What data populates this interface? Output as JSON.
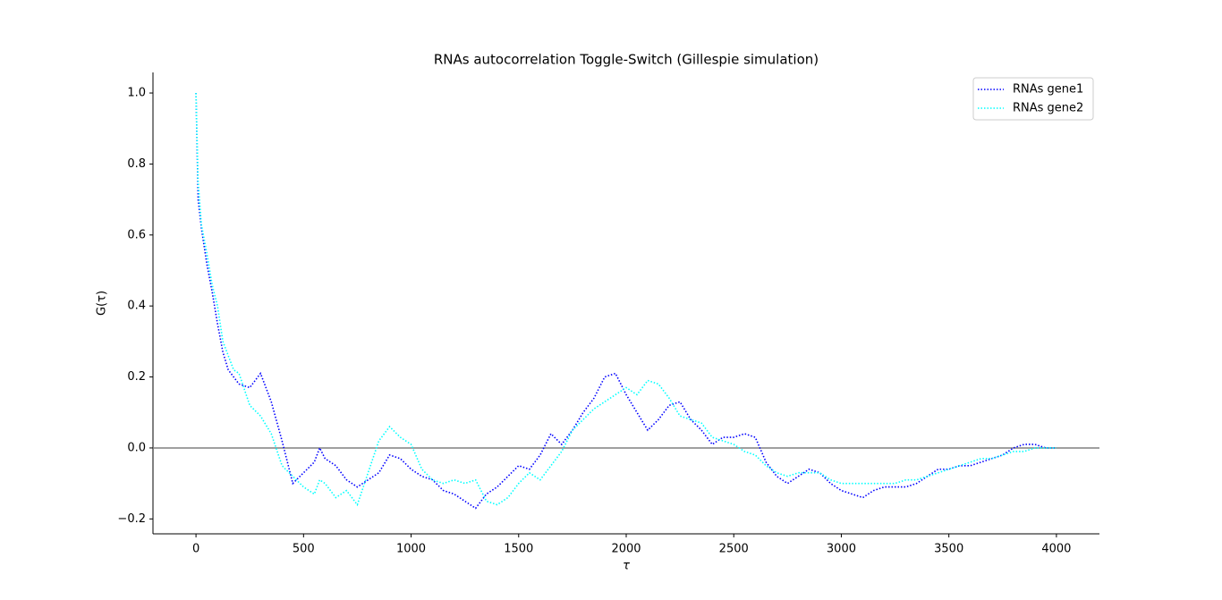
{
  "chart_data": {
    "type": "line",
    "title": "RNAs autocorrelation Toggle-Switch (Gillespie simulation)",
    "x_label": "τ",
    "y_label": "G(τ)",
    "x": [
      0,
      10,
      25,
      50,
      75,
      100,
      125,
      150,
      175,
      200,
      250,
      300,
      350,
      400,
      450,
      500,
      550,
      575,
      600,
      650,
      700,
      750,
      800,
      850,
      900,
      950,
      1000,
      1050,
      1100,
      1150,
      1200,
      1250,
      1300,
      1350,
      1400,
      1450,
      1500,
      1550,
      1600,
      1650,
      1700,
      1750,
      1800,
      1850,
      1900,
      1950,
      2000,
      2050,
      2100,
      2150,
      2200,
      2250,
      2300,
      2350,
      2400,
      2450,
      2500,
      2550,
      2600,
      2650,
      2700,
      2750,
      2800,
      2850,
      2900,
      2950,
      3000,
      3050,
      3100,
      3150,
      3200,
      3250,
      3300,
      3350,
      3400,
      3450,
      3500,
      3550,
      3600,
      3650,
      3700,
      3750,
      3800,
      3850,
      3900,
      3950,
      4000
    ],
    "series": [
      {
        "name": "RNAs gene1",
        "color": "#0000ff",
        "values": [
          1.0,
          0.7,
          0.62,
          0.52,
          0.44,
          0.35,
          0.27,
          0.22,
          0.2,
          0.18,
          0.17,
          0.21,
          0.13,
          0.02,
          -0.1,
          -0.07,
          -0.04,
          0.0,
          -0.03,
          -0.05,
          -0.09,
          -0.11,
          -0.09,
          -0.07,
          -0.02,
          -0.03,
          -0.06,
          -0.08,
          -0.09,
          -0.12,
          -0.13,
          -0.15,
          -0.17,
          -0.13,
          -0.11,
          -0.08,
          -0.05,
          -0.06,
          -0.02,
          0.04,
          0.01,
          0.05,
          0.1,
          0.14,
          0.2,
          0.21,
          0.15,
          0.1,
          0.05,
          0.08,
          0.12,
          0.13,
          0.08,
          0.05,
          0.01,
          0.03,
          0.03,
          0.04,
          0.03,
          -0.04,
          -0.08,
          -0.1,
          -0.08,
          -0.06,
          -0.07,
          -0.1,
          -0.12,
          -0.13,
          -0.14,
          -0.12,
          -0.11,
          -0.11,
          -0.11,
          -0.1,
          -0.08,
          -0.06,
          -0.06,
          -0.05,
          -0.05,
          -0.04,
          -0.03,
          -0.02,
          0.0,
          0.01,
          0.01,
          0.0,
          0.0
        ]
      },
      {
        "name": "RNAs gene2",
        "color": "#00ffff",
        "values": [
          1.0,
          0.75,
          0.63,
          0.55,
          0.46,
          0.4,
          0.3,
          0.26,
          0.22,
          0.21,
          0.12,
          0.09,
          0.04,
          -0.05,
          -0.08,
          -0.11,
          -0.13,
          -0.09,
          -0.1,
          -0.14,
          -0.12,
          -0.16,
          -0.07,
          0.02,
          0.06,
          0.03,
          0.01,
          -0.06,
          -0.09,
          -0.1,
          -0.09,
          -0.1,
          -0.09,
          -0.15,
          -0.16,
          -0.14,
          -0.1,
          -0.07,
          -0.09,
          -0.05,
          -0.01,
          0.05,
          0.08,
          0.11,
          0.13,
          0.15,
          0.17,
          0.15,
          0.19,
          0.18,
          0.14,
          0.09,
          0.08,
          0.07,
          0.03,
          0.02,
          0.01,
          -0.01,
          -0.02,
          -0.05,
          -0.07,
          -0.08,
          -0.07,
          -0.07,
          -0.07,
          -0.09,
          -0.1,
          -0.1,
          -0.1,
          -0.1,
          -0.1,
          -0.1,
          -0.09,
          -0.09,
          -0.08,
          -0.07,
          -0.06,
          -0.05,
          -0.04,
          -0.03,
          -0.03,
          -0.02,
          -0.01,
          -0.01,
          0.0,
          0.0,
          0.0
        ]
      }
    ],
    "xlim": [
      -200,
      4200
    ],
    "xticks": [
      0,
      500,
      1000,
      1500,
      2000,
      2500,
      3000,
      3500,
      4000
    ],
    "ylim": [
      -0.242,
      1.058
    ],
    "yticks": [
      {
        "value": -0.2,
        "label": "−0.2"
      },
      {
        "value": 0,
        "label": "0.0"
      },
      {
        "value": 0.2,
        "label": "0.2"
      },
      {
        "value": 0.4,
        "label": "0.4"
      },
      {
        "value": 0.6,
        "label": "0.6"
      },
      {
        "value": 0.8,
        "label": "0.8"
      },
      {
        "value": 1,
        "label": "1.0"
      }
    ],
    "hline": 0,
    "legend": "upper right",
    "line_style": "dotted"
  }
}
